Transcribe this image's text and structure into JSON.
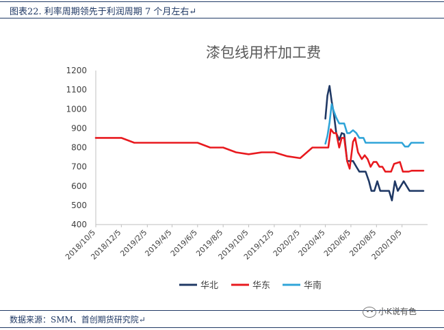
{
  "header": {
    "caption": "图表22.   利率周期领先于利润周期 7 个月左右↵"
  },
  "footer": {
    "source": "数据来源：SMM、首创期货研究院↵",
    "watermark": "小K说有色"
  },
  "chart_data": {
    "type": "line",
    "title": "漆包线用杆加工费",
    "xlabel": "",
    "ylabel": "",
    "ylim": [
      400,
      1200
    ],
    "yticks": [
      400,
      500,
      600,
      700,
      800,
      900,
      1000,
      1100,
      1200
    ],
    "xlim": [
      "2018-10-05",
      "2020-12-05"
    ],
    "xticks": [
      "2018/10/5",
      "2018/12/5",
      "2019/2/5",
      "2019/4/5",
      "2019/6/5",
      "2019/8/5",
      "2019/10/5",
      "2019/12/5",
      "2020/2/5",
      "2020/4/5",
      "2020/6/5",
      "2020/8/5",
      "2020/10/5"
    ],
    "legend_position": "bottom",
    "grid": false,
    "series": [
      {
        "name": "华北",
        "color": "#1f3864",
        "points": [
          [
            "2020-04-05",
            950
          ],
          [
            "2020-04-10",
            1070
          ],
          [
            "2020-04-15",
            1120
          ],
          [
            "2020-04-20",
            1040
          ],
          [
            "2020-04-25",
            980
          ],
          [
            "2020-05-01",
            875
          ],
          [
            "2020-05-08",
            840
          ],
          [
            "2020-05-14",
            875
          ],
          [
            "2020-05-20",
            870
          ],
          [
            "2020-05-27",
            730
          ],
          [
            "2020-06-02",
            730
          ],
          [
            "2020-06-10",
            730
          ],
          [
            "2020-06-18",
            700
          ],
          [
            "2020-06-25",
            675
          ],
          [
            "2020-07-05",
            675
          ],
          [
            "2020-07-10",
            675
          ],
          [
            "2020-07-18",
            625
          ],
          [
            "2020-07-24",
            575
          ],
          [
            "2020-07-31",
            575
          ],
          [
            "2020-08-07",
            625
          ],
          [
            "2020-08-14",
            575
          ],
          [
            "2020-08-21",
            575
          ],
          [
            "2020-08-28",
            575
          ],
          [
            "2020-09-04",
            575
          ],
          [
            "2020-09-11",
            525
          ],
          [
            "2020-09-18",
            625
          ],
          [
            "2020-09-25",
            575
          ],
          [
            "2020-10-02",
            600
          ],
          [
            "2020-10-09",
            625
          ],
          [
            "2020-10-16",
            600
          ],
          [
            "2020-10-23",
            575
          ],
          [
            "2020-10-30",
            575
          ],
          [
            "2020-11-10",
            575
          ],
          [
            "2020-11-25",
            575
          ]
        ]
      },
      {
        "name": "华东",
        "color": "#e8191e",
        "points": [
          [
            "2018-10-05",
            850
          ],
          [
            "2018-11-05",
            850
          ],
          [
            "2018-12-05",
            850
          ],
          [
            "2019-01-05",
            825
          ],
          [
            "2019-02-05",
            825
          ],
          [
            "2019-03-05",
            825
          ],
          [
            "2019-04-05",
            825
          ],
          [
            "2019-05-05",
            825
          ],
          [
            "2019-06-05",
            825
          ],
          [
            "2019-07-05",
            800
          ],
          [
            "2019-08-05",
            800
          ],
          [
            "2019-09-05",
            775
          ],
          [
            "2019-10-05",
            765
          ],
          [
            "2019-11-05",
            775
          ],
          [
            "2019-12-05",
            775
          ],
          [
            "2020-01-05",
            755
          ],
          [
            "2020-02-05",
            745
          ],
          [
            "2020-03-05",
            800
          ],
          [
            "2020-04-05",
            800
          ],
          [
            "2020-04-12",
            800
          ],
          [
            "2020-04-18",
            895
          ],
          [
            "2020-04-25",
            875
          ],
          [
            "2020-05-01",
            875
          ],
          [
            "2020-05-08",
            800
          ],
          [
            "2020-05-14",
            850
          ],
          [
            "2020-05-20",
            850
          ],
          [
            "2020-05-27",
            730
          ],
          [
            "2020-06-02",
            690
          ],
          [
            "2020-06-10",
            830
          ],
          [
            "2020-06-15",
            850
          ],
          [
            "2020-06-22",
            775
          ],
          [
            "2020-07-01",
            740
          ],
          [
            "2020-07-08",
            760
          ],
          [
            "2020-07-15",
            740
          ],
          [
            "2020-07-22",
            700
          ],
          [
            "2020-07-29",
            725
          ],
          [
            "2020-08-05",
            725
          ],
          [
            "2020-08-12",
            700
          ],
          [
            "2020-08-19",
            700
          ],
          [
            "2020-08-26",
            675
          ],
          [
            "2020-09-02",
            675
          ],
          [
            "2020-09-09",
            675
          ],
          [
            "2020-09-16",
            715
          ],
          [
            "2020-09-23",
            720
          ],
          [
            "2020-09-30",
            725
          ],
          [
            "2020-10-07",
            675
          ],
          [
            "2020-10-14",
            675
          ],
          [
            "2020-10-21",
            675
          ],
          [
            "2020-10-28",
            680
          ],
          [
            "2020-11-10",
            680
          ],
          [
            "2020-11-25",
            680
          ]
        ]
      },
      {
        "name": "华南",
        "color": "#2fa4d8",
        "points": [
          [
            "2020-04-05",
            820
          ],
          [
            "2020-04-10",
            860
          ],
          [
            "2020-04-15",
            930
          ],
          [
            "2020-04-20",
            1025
          ],
          [
            "2020-04-25",
            990
          ],
          [
            "2020-05-01",
            955
          ],
          [
            "2020-05-08",
            925
          ],
          [
            "2020-05-14",
            925
          ],
          [
            "2020-05-20",
            925
          ],
          [
            "2020-05-27",
            875
          ],
          [
            "2020-06-02",
            875
          ],
          [
            "2020-06-10",
            890
          ],
          [
            "2020-06-18",
            875
          ],
          [
            "2020-06-25",
            850
          ],
          [
            "2020-07-05",
            850
          ],
          [
            "2020-07-10",
            825
          ],
          [
            "2020-07-18",
            825
          ],
          [
            "2020-08-05",
            825
          ],
          [
            "2020-08-25",
            825
          ],
          [
            "2020-09-10",
            825
          ],
          [
            "2020-09-25",
            825
          ],
          [
            "2020-10-05",
            825
          ],
          [
            "2020-10-12",
            805
          ],
          [
            "2020-10-20",
            805
          ],
          [
            "2020-10-27",
            825
          ],
          [
            "2020-11-10",
            825
          ],
          [
            "2020-11-25",
            825
          ]
        ]
      }
    ]
  }
}
